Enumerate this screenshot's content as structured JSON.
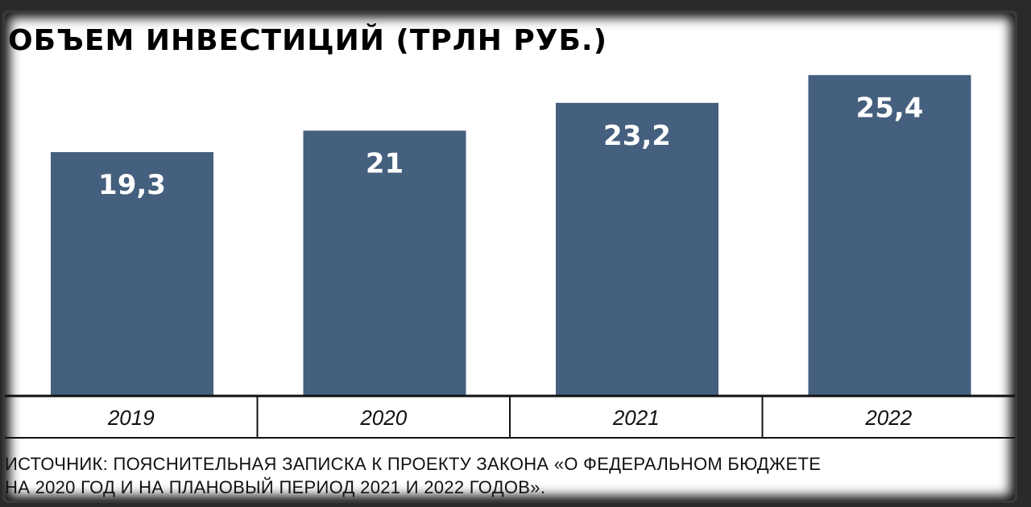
{
  "chart_data": {
    "type": "bar",
    "title": "ОБЪЕМ ИНВЕСТИЦИЙ (ТРЛН РУБ.)",
    "categories": [
      "2019",
      "2020",
      "2021",
      "2022"
    ],
    "values": [
      19.3,
      21,
      23.2,
      25.4
    ],
    "value_labels": [
      "19,3",
      "21",
      "23,2",
      "25,4"
    ],
    "xlabel": "",
    "ylabel": "",
    "ylim": [
      0,
      26.5
    ],
    "grid": false,
    "bar_color": "#455f7e",
    "label_color": "#ffffff"
  },
  "source": {
    "line1": "ИСТОЧНИК: ПОЯСНИТЕЛЬНАЯ ЗАПИСКА К ПРОЕКТУ ЗАКОНА «О ФЕДЕРАЛЬНОМ БЮДЖЕТЕ",
    "line2": "НА 2020 ГОД И НА ПЛАНОВЫЙ ПЕРИОД 2021 И 2022 ГОДОВ»."
  }
}
